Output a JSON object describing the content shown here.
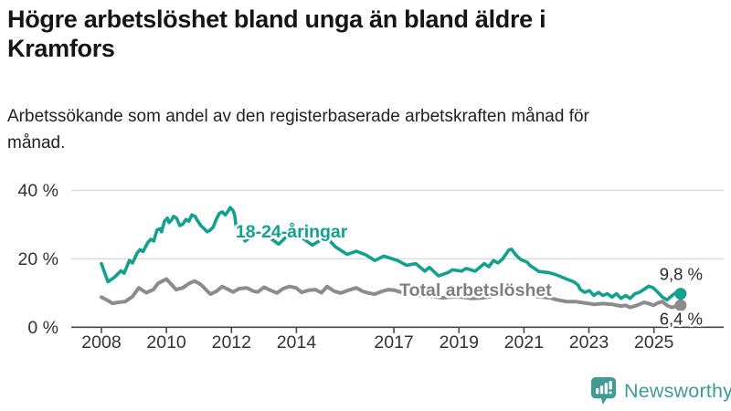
{
  "header": {
    "title": "Högre arbetslöshet bland unga än bland äldre i Kramfors",
    "subtitle": "Arbetssökande som andel av den registerbaserade arbetskraften månad för månad."
  },
  "footer": {
    "brand": "Newsworthy",
    "logo_icon": "newsworthy-speech-bubble-bar-chart-icon"
  },
  "colors": {
    "youth_line": "#13a08f",
    "total_line": "#8a8c8e",
    "total_label": "#7d7f82",
    "grid": "#d9d9d9",
    "axis": "#474747",
    "value_label_text": "#2b2b2b",
    "brand_teal": "#3f9c95"
  },
  "chart_data": {
    "type": "line",
    "title": "Högre arbetslöshet bland unga än bland äldre i Kramfors",
    "subtitle": "Arbetssökande som andel av den registerbaserade arbetskraften månad för månad.",
    "unit": "%",
    "grid": "horizontal",
    "legend_position": "inline-labels",
    "x_axis": {
      "range": [
        2007.8,
        2026.1
      ],
      "ticks": [
        {
          "t": 2008,
          "label": "2008"
        },
        {
          "t": 2010,
          "label": "2010"
        },
        {
          "t": 2012,
          "label": "2012"
        },
        {
          "t": 2014,
          "label": "2014"
        },
        {
          "t": 2017,
          "label": "2017"
        },
        {
          "t": 2019,
          "label": "2019"
        },
        {
          "t": 2021,
          "label": "2021"
        },
        {
          "t": 2023,
          "label": "2023"
        },
        {
          "t": 2025,
          "label": "2025"
        }
      ]
    },
    "y_axis": {
      "range": [
        0,
        43
      ],
      "ticks": [
        {
          "v": 0,
          "label": "0 %"
        },
        {
          "v": 20,
          "label": "20 %"
        },
        {
          "v": 40,
          "label": "40 %"
        }
      ]
    },
    "series": [
      {
        "id": "total",
        "name": "Total arbetslöshet",
        "color": "#8a8c8e",
        "label_color": "#7d7f82",
        "stroke_width": 4,
        "end_dot": true,
        "end_label": "6,4 %",
        "end_label_position": "below",
        "label_annotation": {
          "text": "Total arbetslöshet",
          "t": 2017.17,
          "v": 9.15
        },
        "points": [
          [
            2008.0,
            8.8
          ],
          [
            2008.2,
            7.8
          ],
          [
            2008.34,
            7.0
          ],
          [
            2008.53,
            7.3
          ],
          [
            2008.73,
            7.5
          ],
          [
            2008.96,
            9.0
          ],
          [
            2009.15,
            11.5
          ],
          [
            2009.38,
            10.1
          ],
          [
            2009.6,
            11.0
          ],
          [
            2009.74,
            12.8
          ],
          [
            2010.0,
            14.1
          ],
          [
            2010.3,
            11.0
          ],
          [
            2010.5,
            11.5
          ],
          [
            2010.7,
            12.8
          ],
          [
            2010.87,
            13.5
          ],
          [
            2011.06,
            12.5
          ],
          [
            2011.35,
            9.7
          ],
          [
            2011.54,
            10.5
          ],
          [
            2011.71,
            11.9
          ],
          [
            2011.91,
            11.0
          ],
          [
            2012.05,
            10.3
          ],
          [
            2012.24,
            11.3
          ],
          [
            2012.47,
            11.5
          ],
          [
            2012.69,
            10.5
          ],
          [
            2012.81,
            10.3
          ],
          [
            2013.0,
            11.7
          ],
          [
            2013.2,
            10.8
          ],
          [
            2013.4,
            10.0
          ],
          [
            2013.59,
            11.3
          ],
          [
            2013.79,
            11.9
          ],
          [
            2013.99,
            11.5
          ],
          [
            2014.16,
            10.2
          ],
          [
            2014.38,
            10.8
          ],
          [
            2014.58,
            11.0
          ],
          [
            2014.77,
            10.1
          ],
          [
            2014.94,
            11.9
          ],
          [
            2015.17,
            10.5
          ],
          [
            2015.37,
            10.0
          ],
          [
            2015.56,
            10.7
          ],
          [
            2015.84,
            11.5
          ],
          [
            2016.04,
            10.5
          ],
          [
            2016.21,
            10.0
          ],
          [
            2016.41,
            9.7
          ],
          [
            2016.63,
            10.5
          ],
          [
            2016.83,
            11.0
          ],
          [
            2017.02,
            10.8
          ],
          [
            2017.3,
            10.0
          ],
          [
            2017.6,
            9.5
          ],
          [
            2017.9,
            9.2
          ],
          [
            2018.2,
            9.0
          ],
          [
            2018.5,
            8.6
          ],
          [
            2018.8,
            8.9
          ],
          [
            2019.1,
            8.8
          ],
          [
            2019.4,
            8.4
          ],
          [
            2019.7,
            8.6
          ],
          [
            2020.0,
            9.0
          ],
          [
            2020.4,
            10.2
          ],
          [
            2020.7,
            10.0
          ],
          [
            2021.0,
            9.6
          ],
          [
            2021.4,
            9.0
          ],
          [
            2021.8,
            8.6
          ],
          [
            2022.03,
            8.0
          ],
          [
            2022.31,
            7.5
          ],
          [
            2022.59,
            7.5
          ],
          [
            2022.87,
            7.1
          ],
          [
            2023.15,
            6.7
          ],
          [
            2023.43,
            6.9
          ],
          [
            2023.71,
            6.7
          ],
          [
            2023.99,
            6.2
          ],
          [
            2024.13,
            6.4
          ],
          [
            2024.27,
            5.8
          ],
          [
            2024.41,
            6.2
          ],
          [
            2024.55,
            6.7
          ],
          [
            2024.7,
            7.3
          ],
          [
            2024.84,
            6.9
          ],
          [
            2024.98,
            6.4
          ],
          [
            2025.12,
            7.1
          ],
          [
            2025.26,
            7.5
          ],
          [
            2025.4,
            6.4
          ],
          [
            2025.54,
            5.8
          ],
          [
            2025.82,
            6.4
          ]
        ]
      },
      {
        "id": "youth",
        "name": "18-24-åringar",
        "color": "#13a08f",
        "label_color": "#13a08f",
        "stroke_width": 3.6,
        "end_dot": true,
        "end_label": "9,8 %",
        "end_label_position": "above",
        "label_annotation": {
          "text": "18-24-åringar",
          "t": 2012.13,
          "v": 26.2
        },
        "points": [
          [
            2008.0,
            18.6
          ],
          [
            2008.2,
            13.3
          ],
          [
            2008.4,
            14.6
          ],
          [
            2008.6,
            16.5
          ],
          [
            2008.7,
            15.8
          ],
          [
            2008.86,
            19.5
          ],
          [
            2008.96,
            18.8
          ],
          [
            2009.1,
            21.7
          ],
          [
            2009.19,
            22.7
          ],
          [
            2009.28,
            22.1
          ],
          [
            2009.43,
            24.8
          ],
          [
            2009.52,
            25.7
          ],
          [
            2009.61,
            25.2
          ],
          [
            2009.71,
            28.4
          ],
          [
            2009.8,
            28.8
          ],
          [
            2009.85,
            27.9
          ],
          [
            2009.94,
            31.0
          ],
          [
            2010.03,
            31.9
          ],
          [
            2010.08,
            30.6
          ],
          [
            2010.17,
            31.5
          ],
          [
            2010.22,
            32.4
          ],
          [
            2010.31,
            31.9
          ],
          [
            2010.41,
            29.7
          ],
          [
            2010.5,
            30.1
          ],
          [
            2010.6,
            31.5
          ],
          [
            2010.69,
            31.0
          ],
          [
            2010.78,
            32.8
          ],
          [
            2010.88,
            32.4
          ],
          [
            2010.97,
            31.0
          ],
          [
            2011.06,
            29.7
          ],
          [
            2011.16,
            28.8
          ],
          [
            2011.25,
            27.9
          ],
          [
            2011.35,
            28.4
          ],
          [
            2011.44,
            29.3
          ],
          [
            2011.53,
            31.5
          ],
          [
            2011.63,
            33.3
          ],
          [
            2011.72,
            33.7
          ],
          [
            2011.81,
            32.8
          ],
          [
            2011.91,
            34.1
          ],
          [
            2011.96,
            35.0
          ],
          [
            2012.05,
            34.1
          ],
          [
            2012.1,
            32.8
          ],
          [
            2012.14,
            29.7
          ],
          [
            2012.42,
            25.2
          ],
          [
            2012.7,
            27.0
          ],
          [
            2012.95,
            28.0
          ],
          [
            2013.2,
            26.0
          ],
          [
            2013.45,
            24.3
          ],
          [
            2013.7,
            26.5
          ],
          [
            2013.95,
            27.5
          ],
          [
            2014.2,
            26.0
          ],
          [
            2014.49,
            24.0
          ],
          [
            2014.75,
            25.5
          ],
          [
            2014.95,
            26.0
          ],
          [
            2015.2,
            23.5
          ],
          [
            2015.56,
            21.3
          ],
          [
            2015.84,
            22.2
          ],
          [
            2016.13,
            21.2
          ],
          [
            2016.41,
            19.5
          ],
          [
            2016.69,
            20.8
          ],
          [
            2017.11,
            19.5
          ],
          [
            2017.39,
            18.1
          ],
          [
            2017.67,
            18.6
          ],
          [
            2017.95,
            16.4
          ],
          [
            2018.09,
            17.5
          ],
          [
            2018.37,
            15.0
          ],
          [
            2018.66,
            16.0
          ],
          [
            2018.8,
            16.8
          ],
          [
            2019.08,
            16.4
          ],
          [
            2019.22,
            17.2
          ],
          [
            2019.5,
            16.4
          ],
          [
            2019.78,
            18.6
          ],
          [
            2019.92,
            17.7
          ],
          [
            2020.06,
            19.5
          ],
          [
            2020.2,
            18.8
          ],
          [
            2020.34,
            19.9
          ],
          [
            2020.54,
            22.6
          ],
          [
            2020.62,
            22.8
          ],
          [
            2020.76,
            21.0
          ],
          [
            2020.9,
            19.8
          ],
          [
            2021.1,
            19.0
          ],
          [
            2021.18,
            18.1
          ],
          [
            2021.46,
            16.3
          ],
          [
            2021.75,
            16.0
          ],
          [
            2021.94,
            15.5
          ],
          [
            2022.11,
            14.9
          ],
          [
            2022.31,
            14.1
          ],
          [
            2022.53,
            13.3
          ],
          [
            2022.67,
            12.3
          ],
          [
            2022.73,
            11.1
          ],
          [
            2022.87,
            10.2
          ],
          [
            2023.01,
            10.7
          ],
          [
            2023.15,
            9.3
          ],
          [
            2023.29,
            10.2
          ],
          [
            2023.43,
            9.3
          ],
          [
            2023.57,
            9.8
          ],
          [
            2023.71,
            8.8
          ],
          [
            2023.85,
            9.8
          ],
          [
            2023.99,
            8.4
          ],
          [
            2024.13,
            9.3
          ],
          [
            2024.27,
            8.4
          ],
          [
            2024.41,
            9.8
          ],
          [
            2024.55,
            10.2
          ],
          [
            2024.7,
            11.1
          ],
          [
            2024.84,
            12.0
          ],
          [
            2024.98,
            11.5
          ],
          [
            2025.12,
            10.2
          ],
          [
            2025.26,
            8.8
          ],
          [
            2025.4,
            8.0
          ],
          [
            2025.68,
            10.2
          ],
          [
            2025.82,
            9.8
          ]
        ]
      }
    ]
  }
}
